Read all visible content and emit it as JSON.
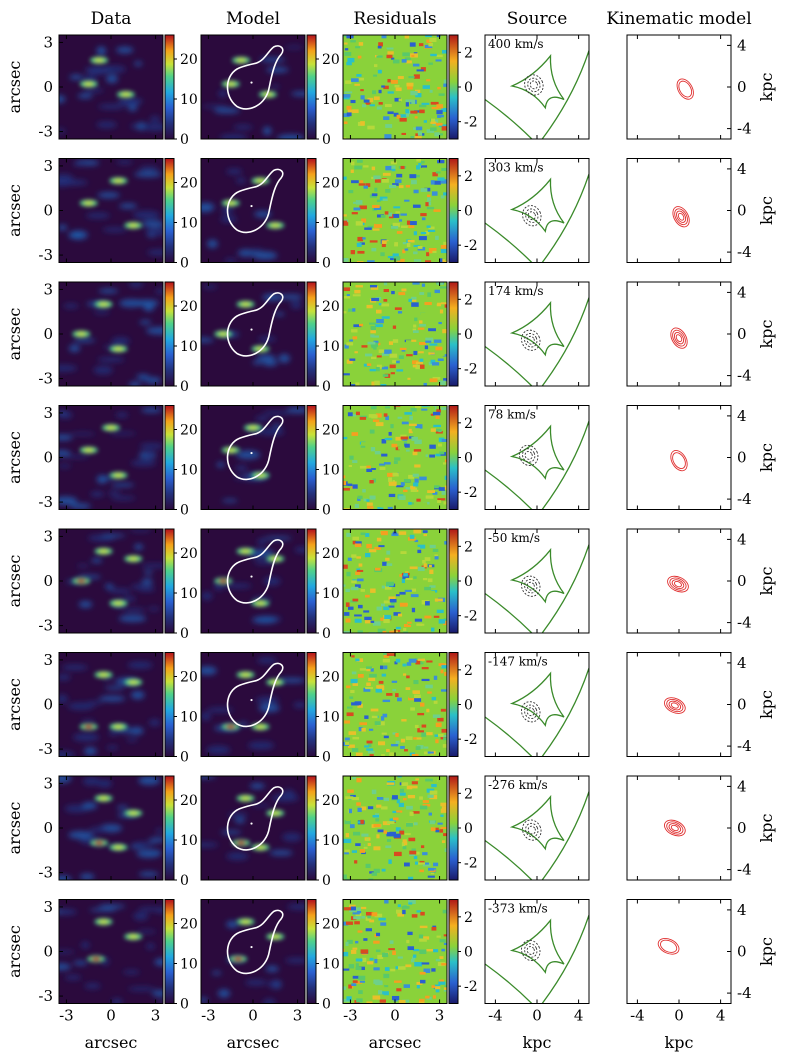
{
  "columns": [
    "Data",
    "Model",
    "Residuals",
    "Source",
    "Kinematic model"
  ],
  "axis_labels": {
    "arcsec_y": "arcsec",
    "arcsec_x": "arcsec",
    "kpc_x": "kpc",
    "kpc_y": "kpc"
  },
  "ticks": {
    "arcsec": [
      "-3",
      "0",
      "3"
    ],
    "kpc": [
      "-4",
      "0",
      "4"
    ],
    "flux_colorbar": [
      "0",
      "10",
      "20"
    ],
    "residual_colorbar": [
      "-2",
      "0",
      "2"
    ]
  },
  "velocities": [
    "400 km/s",
    "303 km/s",
    "174 km/s",
    "78 km/s",
    "-50 km/s",
    "-147 km/s",
    "-276 km/s",
    "-373 km/s"
  ],
  "colors": {
    "background": "#2b0a3d",
    "critical_curve": "#ffffff",
    "caustic": "#3a8a2a",
    "source_contour": "#333333",
    "kinematic_contour": "#e03030"
  },
  "chart_data": {
    "type": "heatmap",
    "rows": 8,
    "x_range_arcsec": [
      -3.5,
      3.5
    ],
    "y_range_arcsec": [
      -3.5,
      3.5
    ],
    "x_range_kpc": [
      -5,
      5
    ],
    "y_range_kpc": [
      -5,
      5
    ],
    "flux_colorbar_range": [
      0,
      26
    ],
    "residual_colorbar_range": [
      -3,
      3
    ],
    "channels": [
      {
        "velocity": "400 km/s",
        "arcs": [
          [
            -0.8,
            1.8
          ],
          [
            -1.5,
            0.2
          ],
          [
            1.0,
            -0.5
          ]
        ],
        "src": [
          -0.3,
          0.2
        ],
        "kin": [
          0.6,
          -0.2
        ]
      },
      {
        "velocity": "303 km/s",
        "arcs": [
          [
            0.5,
            2.0
          ],
          [
            -1.5,
            0.5
          ],
          [
            1.5,
            -1.0
          ]
        ],
        "src": [
          -0.5,
          -0.5
        ],
        "kin": [
          0.2,
          -0.6
        ]
      },
      {
        "velocity": "174 km/s",
        "arcs": [
          [
            -0.5,
            2.0
          ],
          [
            -2.0,
            0.0
          ],
          [
            0.5,
            -1.0
          ]
        ],
        "src": [
          -0.6,
          -0.6
        ],
        "kin": [
          0.0,
          -0.4
        ]
      },
      {
        "velocity": "78 km/s",
        "arcs": [
          [
            0.0,
            2.0
          ],
          [
            -1.5,
            0.5
          ],
          [
            0.5,
            -1.2
          ]
        ],
        "src": [
          -0.8,
          0.2
        ],
        "kin": [
          0.0,
          -0.3
        ]
      },
      {
        "velocity": "-50 km/s",
        "arcs": [
          [
            -0.5,
            2.0
          ],
          [
            1.5,
            1.5
          ],
          [
            -2.0,
            0.0
          ],
          [
            0.5,
            -1.5
          ]
        ],
        "src": [
          -0.6,
          -0.5
        ],
        "kin": [
          -0.1,
          -0.3
        ]
      },
      {
        "velocity": "-147 km/s",
        "arcs": [
          [
            -0.5,
            2.0
          ],
          [
            1.5,
            1.5
          ],
          [
            -1.5,
            -1.5
          ],
          [
            0.5,
            -1.5
          ]
        ],
        "src": [
          -0.6,
          -0.7
        ],
        "kin": [
          -0.4,
          -0.1
        ]
      },
      {
        "velocity": "-276 km/s",
        "arcs": [
          [
            -0.5,
            2.0
          ],
          [
            1.5,
            1.0
          ],
          [
            -0.8,
            -1.0
          ],
          [
            0.5,
            -1.3
          ]
        ],
        "src": [
          -0.5,
          -0.2
        ],
        "kin": [
          -0.4,
          0.0
        ]
      },
      {
        "velocity": "-373 km/s",
        "arcs": [
          [
            -0.5,
            2.0
          ],
          [
            1.5,
            1.0
          ],
          [
            -1.0,
            -0.5
          ]
        ],
        "src": [
          -0.6,
          0.1
        ],
        "kin": [
          -1.0,
          0.5
        ]
      }
    ]
  }
}
